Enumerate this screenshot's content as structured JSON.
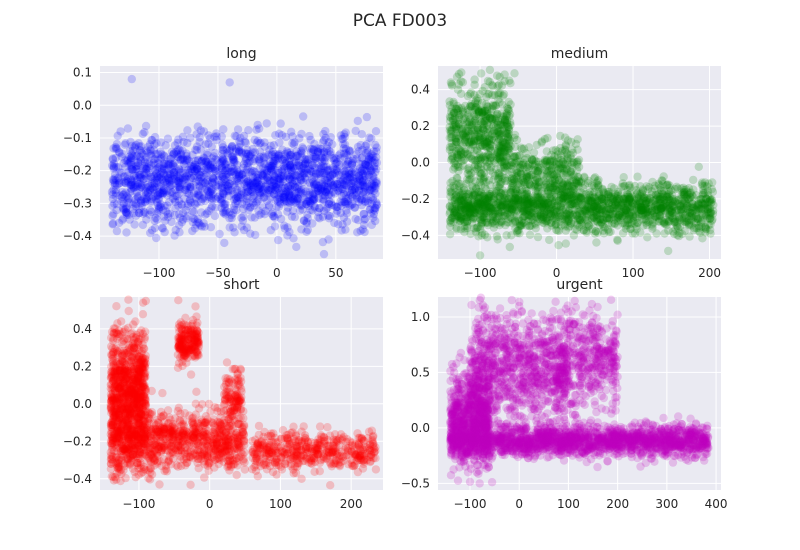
{
  "figure": {
    "title": "PCA FD003"
  },
  "chart_data": [
    {
      "type": "scatter",
      "title": "long",
      "color": "#0000ff",
      "xlim": [
        -150,
        90
      ],
      "ylim": [
        -0.47,
        0.12
      ],
      "xticks": [
        -100,
        -50,
        0,
        50
      ],
      "yticks": [
        -0.4,
        -0.3,
        -0.2,
        -0.1,
        0.0,
        0.1
      ],
      "xtick_labels": [
        "−100",
        "−50",
        "0",
        "50"
      ],
      "ytick_labels": [
        "−0.4",
        "−0.3",
        "−0.2",
        "−0.1",
        "0.0",
        "0.1"
      ],
      "regions": [
        {
          "x": [
            -140,
            85
          ],
          "y_center": -0.23,
          "y_spread": 0.07,
          "n": 1800
        }
      ],
      "sample_points": [
        [
          -123,
          0.08
        ],
        [
          -40,
          0.07
        ],
        [
          -130,
          -0.32
        ],
        [
          60,
          -0.18
        ],
        [
          80,
          -0.28
        ]
      ]
    },
    {
      "type": "scatter",
      "title": "medium",
      "color": "#008000",
      "xlim": [
        -155,
        215
      ],
      "ylim": [
        -0.53,
        0.53
      ],
      "xticks": [
        -100,
        0,
        100,
        200
      ],
      "yticks": [
        -0.4,
        -0.2,
        0.0,
        0.2,
        0.4
      ],
      "xtick_labels": [
        "−100",
        "0",
        "100",
        "200"
      ],
      "ytick_labels": [
        "−0.4",
        "−0.2",
        "0.0",
        "0.2",
        "0.4"
      ],
      "regions": [
        {
          "x": [
            -140,
            -60
          ],
          "y_center": 0.15,
          "y_spread": 0.15,
          "n": 600
        },
        {
          "x": [
            -140,
            205
          ],
          "y_center": -0.25,
          "y_spread": 0.07,
          "n": 1700
        },
        {
          "x": [
            -60,
            30
          ],
          "y_center": -0.05,
          "y_spread": 0.08,
          "n": 300
        }
      ],
      "sample_points": [
        [
          -55,
          0.49
        ],
        [
          -100,
          -0.51
        ],
        [
          200,
          -0.28
        ],
        [
          80,
          -0.43
        ]
      ]
    },
    {
      "type": "scatter",
      "title": "short",
      "color": "#ff0000",
      "xlim": [
        -155,
        245
      ],
      "ylim": [
        -0.46,
        0.57
      ],
      "xticks": [
        -100,
        0,
        100,
        200
      ],
      "yticks": [
        -0.4,
        -0.2,
        0.0,
        0.2,
        0.4
      ],
      "xtick_labels": [
        "−100",
        "0",
        "100",
        "200"
      ],
      "ytick_labels": [
        "−0.4",
        "−0.2",
        "0.0",
        "0.2",
        "0.4"
      ],
      "regions": [
        {
          "x": [
            -140,
            -90
          ],
          "y_center": 0.05,
          "y_spread": 0.18,
          "n": 900
        },
        {
          "x": [
            -45,
            -15
          ],
          "y_center": 0.33,
          "y_spread": 0.06,
          "n": 200
        },
        {
          "x": [
            -140,
            50
          ],
          "y_center": -0.2,
          "y_spread": 0.08,
          "n": 900
        },
        {
          "x": [
            60,
            235
          ],
          "y_center": -0.25,
          "y_spread": 0.05,
          "n": 450
        },
        {
          "x": [
            20,
            45
          ],
          "y_center": 0.05,
          "y_spread": 0.07,
          "n": 100
        }
      ],
      "sample_points": [
        [
          -20,
          0.52
        ],
        [
          -125,
          0.44
        ],
        [
          130,
          -0.4
        ],
        [
          235,
          -0.35
        ]
      ]
    },
    {
      "type": "scatter",
      "title": "urgent",
      "color": "#bf00bf",
      "xlim": [
        -165,
        410
      ],
      "ylim": [
        -0.56,
        1.18
      ],
      "xticks": [
        -100,
        0,
        100,
        200,
        300,
        400
      ],
      "yticks": [
        -0.5,
        0.0,
        0.5,
        1.0
      ],
      "xtick_labels": [
        "−100",
        "0",
        "100",
        "200",
        "300",
        "400"
      ],
      "ytick_labels": [
        "−0.5",
        "0.0",
        "0.5",
        "1.0"
      ],
      "regions": [
        {
          "x": [
            -140,
            -60
          ],
          "y_center": 0.1,
          "y_spread": 0.22,
          "n": 700
        },
        {
          "x": [
            -100,
            100
          ],
          "y_center": 0.55,
          "y_spread": 0.25,
          "n": 900
        },
        {
          "x": [
            80,
            200
          ],
          "y_center": 0.6,
          "y_spread": 0.25,
          "n": 400
        },
        {
          "x": [
            -140,
            385
          ],
          "y_center": -0.12,
          "y_spread": 0.07,
          "n": 1800
        }
      ],
      "sample_points": [
        [
          -55,
          -0.49
        ],
        [
          380,
          -0.15
        ],
        [
          200,
          1.02
        ],
        [
          0,
          1.1
        ]
      ]
    }
  ]
}
